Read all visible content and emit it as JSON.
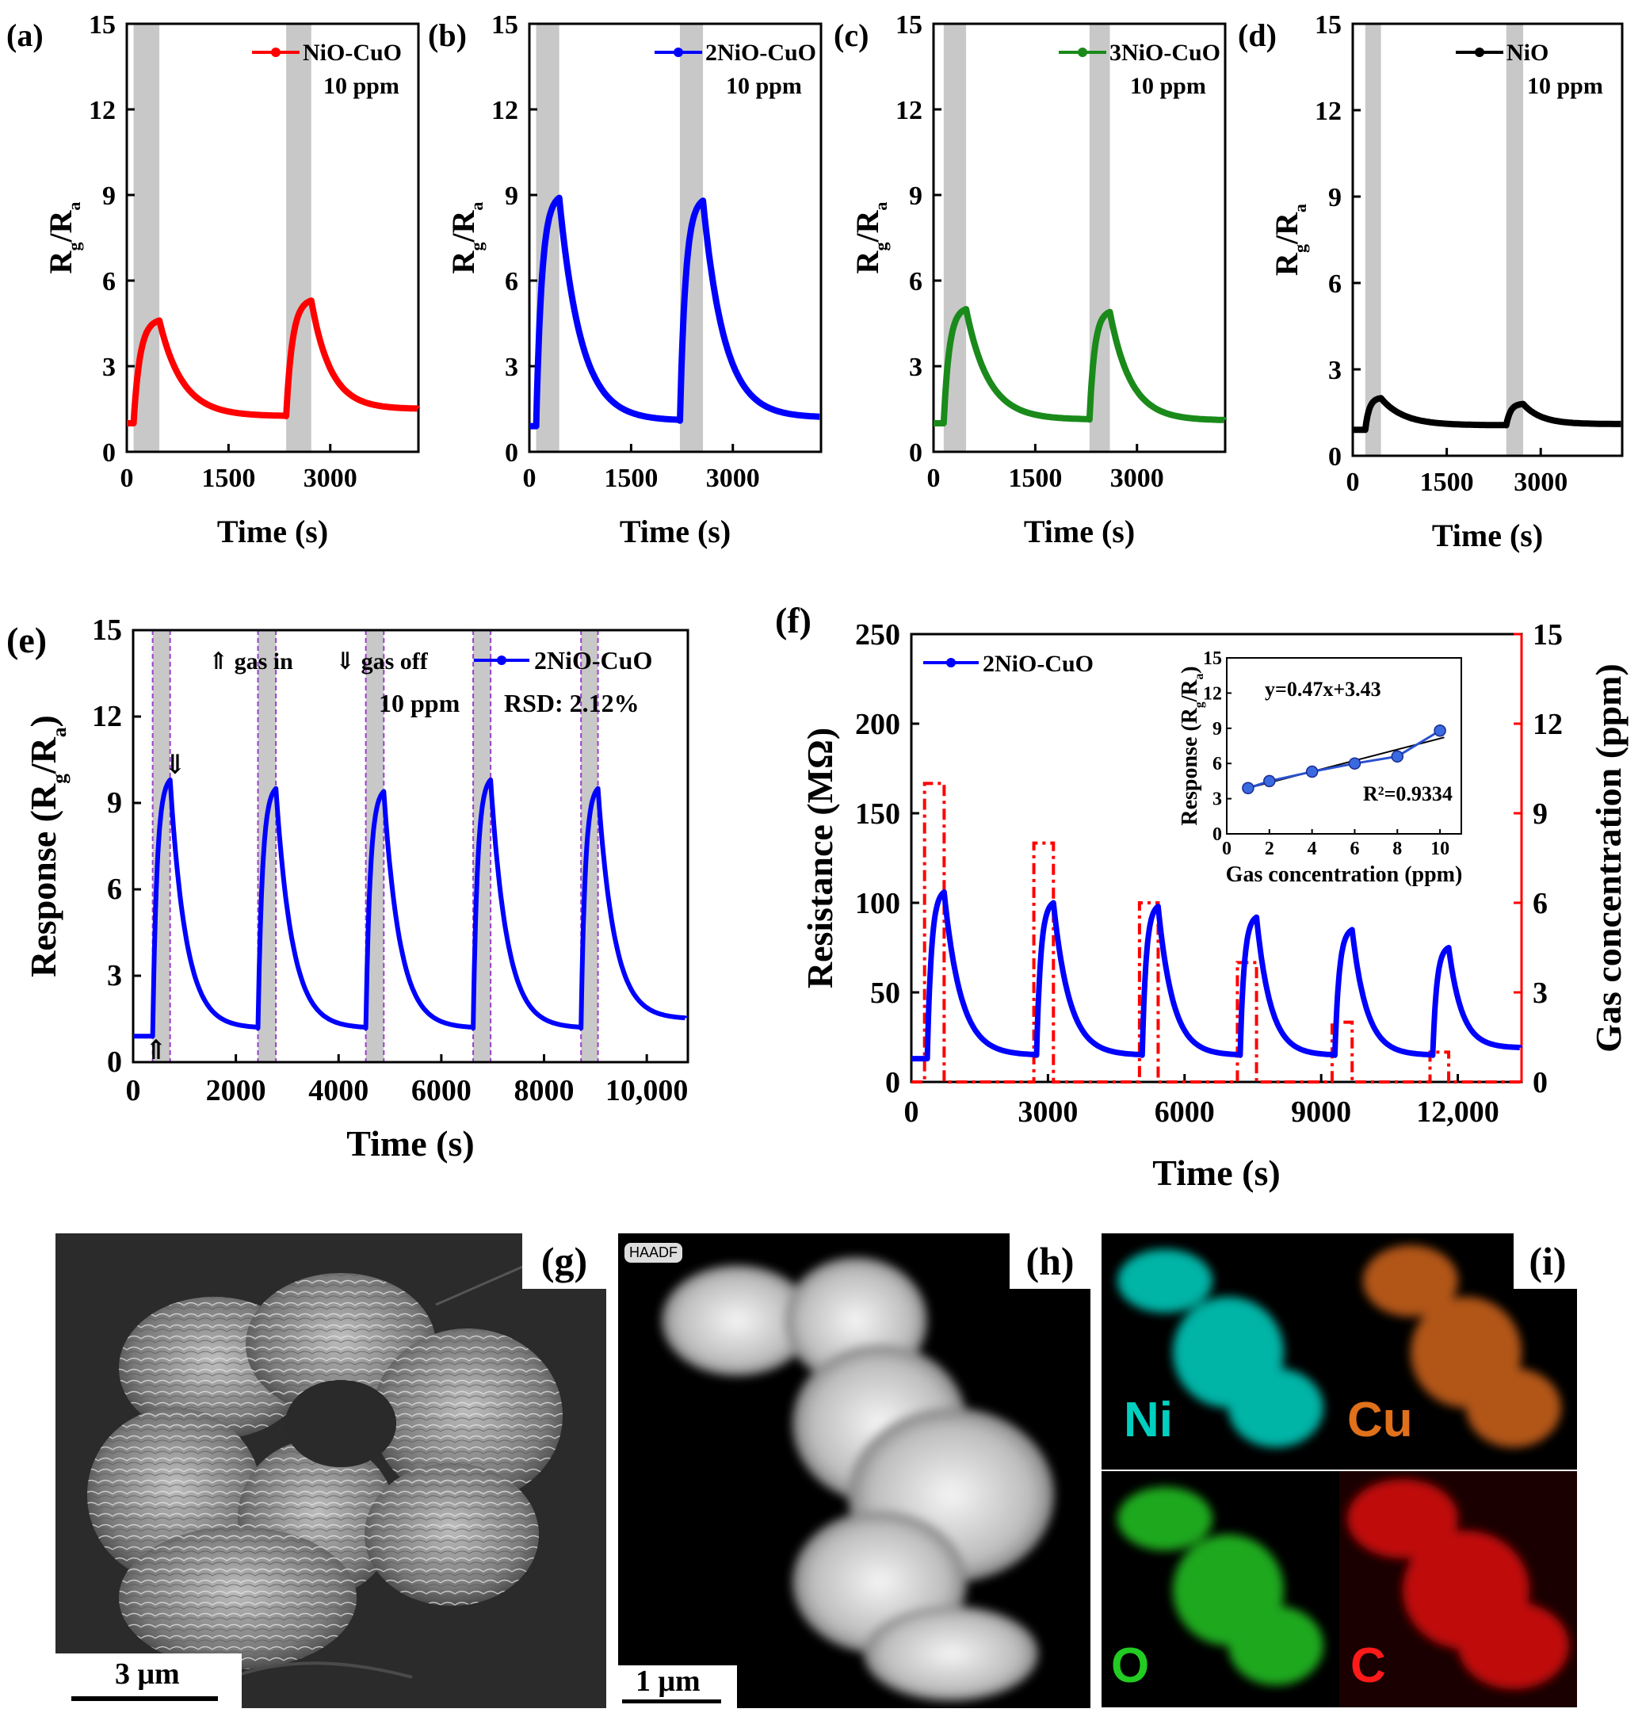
{
  "chart_data": [
    {
      "panel": "(a)",
      "type": "line",
      "legend": "NiO-CuO",
      "note": "10 ppm",
      "color": "#ff0000",
      "xlabel": "Time (s)",
      "ylabel": "R_g/R_a",
      "xlim": [
        0,
        4300
      ],
      "ylim": [
        0,
        15
      ],
      "xticks": [
        0,
        1500,
        3000
      ],
      "yticks": [
        0,
        3,
        6,
        9,
        12,
        15
      ],
      "gas_on_windows": [
        [
          100,
          480
        ],
        [
          2350,
          2720
        ]
      ],
      "pulses": [
        {
          "start": 100,
          "end": 480,
          "peak": 4.6
        },
        {
          "start": 2350,
          "end": 2720,
          "peak": 5.3
        }
      ],
      "baseline": 1.0,
      "final": 1.5
    },
    {
      "panel": "(b)",
      "type": "line",
      "legend": "2NiO-CuO",
      "note": "10 ppm",
      "color": "#0000ff",
      "xlabel": "Time (s)",
      "ylabel": "R_g/R_a",
      "xlim": [
        0,
        4300
      ],
      "ylim": [
        0,
        15
      ],
      "xticks": [
        0,
        1500,
        3000
      ],
      "yticks": [
        0,
        3,
        6,
        9,
        12,
        15
      ],
      "gas_on_windows": [
        [
          100,
          440
        ],
        [
          2220,
          2560
        ]
      ],
      "pulses": [
        {
          "start": 100,
          "end": 440,
          "peak": 8.9
        },
        {
          "start": 2220,
          "end": 2560,
          "peak": 8.8
        }
      ],
      "baseline": 0.9,
      "final": 1.2
    },
    {
      "panel": "(c)",
      "type": "line",
      "legend": "3NiO-CuO",
      "note": "10 ppm",
      "color": "#1a8a1a",
      "xlabel": "Time (s)",
      "ylabel": "R_g/R_a",
      "xlim": [
        0,
        4300
      ],
      "ylim": [
        0,
        15
      ],
      "xticks": [
        0,
        1500,
        3000
      ],
      "yticks": [
        0,
        3,
        6,
        9,
        12,
        15
      ],
      "gas_on_windows": [
        [
          150,
          480
        ],
        [
          2300,
          2600
        ]
      ],
      "pulses": [
        {
          "start": 150,
          "end": 480,
          "peak": 5.0
        },
        {
          "start": 2300,
          "end": 2600,
          "peak": 4.9
        }
      ],
      "baseline": 1.0,
      "final": 1.1
    },
    {
      "panel": "(d)",
      "type": "line",
      "legend": "NiO",
      "note": "10 ppm",
      "color": "#000000",
      "xlabel": "Time (s)",
      "ylabel": "R_g/R_a",
      "xlim": [
        0,
        4300
      ],
      "ylim": [
        0,
        15
      ],
      "xticks": [
        0,
        1500,
        3000
      ],
      "yticks": [
        0,
        3,
        6,
        9,
        12,
        15
      ],
      "gas_on_windows": [
        [
          200,
          450
        ],
        [
          2450,
          2720
        ]
      ],
      "pulses": [
        {
          "start": 200,
          "end": 450,
          "peak": 2.0
        },
        {
          "start": 2450,
          "end": 2720,
          "peak": 1.8
        }
      ],
      "baseline": 0.9,
      "final": 1.1
    },
    {
      "panel": "(e)",
      "type": "line",
      "legend": "2NiO-CuO",
      "note": "10 ppm",
      "rsd": "RSD:  2.12%",
      "gas_in_label": "gas in",
      "gas_off_label": "gas off",
      "color": "#0000ff",
      "xlabel": "Time (s)",
      "ylabel": "Response (R_g/R_a)",
      "xlim": [
        0,
        10800
      ],
      "ylim": [
        0,
        15
      ],
      "xticks": [
        "0",
        "2000",
        "4000",
        "6000",
        "8000",
        "10,000"
      ],
      "xtick_values": [
        0,
        2000,
        4000,
        6000,
        8000,
        10000
      ],
      "yticks": [
        0,
        3,
        6,
        9,
        12,
        15
      ],
      "gas_on_windows": [
        [
          380,
          720
        ],
        [
          2430,
          2780
        ],
        [
          4530,
          4880
        ],
        [
          6620,
          6960
        ],
        [
          8720,
          9050
        ]
      ],
      "pulses": [
        {
          "start": 380,
          "end": 720,
          "peak": 9.8
        },
        {
          "start": 2430,
          "end": 2780,
          "peak": 9.5
        },
        {
          "start": 4530,
          "end": 4880,
          "peak": 9.4
        },
        {
          "start": 6620,
          "end": 6960,
          "peak": 9.8
        },
        {
          "start": 8720,
          "end": 9050,
          "peak": 9.5
        }
      ],
      "baseline": 0.9,
      "final": 1.5
    },
    {
      "panel": "(f)",
      "type": "line",
      "legend": "2NiO-CuO",
      "color": "#0000ff",
      "conc_color": "#ff0000",
      "xlabel": "Time (s)",
      "ylabel": "Resistance (MΩ)",
      "ylabel_right": "Gas concentration (ppm)",
      "xlim": [
        0,
        13400
      ],
      "ylim": [
        0,
        250
      ],
      "ylim_right": [
        0,
        15
      ],
      "xticks": [
        "0",
        "3000",
        "6000",
        "9000",
        "12,000"
      ],
      "xtick_values": [
        0,
        3000,
        6000,
        9000,
        12000
      ],
      "yticks": [
        0,
        50,
        100,
        150,
        200,
        250
      ],
      "yticks_right": [
        0,
        3,
        6,
        9,
        12,
        15
      ],
      "pulses": [
        {
          "start": 350,
          "end": 720,
          "peak": 106,
          "conc": 10
        },
        {
          "start": 2750,
          "end": 3120,
          "peak": 100,
          "conc": 8
        },
        {
          "start": 5070,
          "end": 5420,
          "peak": 98,
          "conc": 6
        },
        {
          "start": 7220,
          "end": 7580,
          "peak": 92,
          "conc": 4
        },
        {
          "start": 9300,
          "end": 9680,
          "peak": 85,
          "conc": 2
        },
        {
          "start": 11450,
          "end": 11800,
          "peak": 75,
          "conc": 1
        }
      ],
      "baseline": 13,
      "final": 19,
      "inset": {
        "xlabel": "Gas concentration (ppm)",
        "ylabel": "Response (R_g/R_a)",
        "xlim": [
          0,
          11
        ],
        "ylim": [
          0,
          15
        ],
        "xticks": [
          0,
          2,
          4,
          6,
          8,
          10
        ],
        "yticks": [
          0,
          3,
          6,
          9,
          12,
          15
        ],
        "x": [
          1,
          2,
          4,
          6,
          8,
          10
        ],
        "y": [
          3.9,
          4.5,
          5.3,
          6.0,
          6.6,
          8.8
        ],
        "fit_equation": "y=0.47x+3.43",
        "r2": "R²=0.9334",
        "fit": {
          "slope": 0.47,
          "intercept": 3.43
        }
      }
    }
  ],
  "images": {
    "g": {
      "label": "(g)",
      "scale": "3 μm"
    },
    "h": {
      "label": "(h)",
      "scale": "1 μm",
      "tag": "HAADF"
    },
    "i": {
      "label": "(i)",
      "elements": [
        {
          "name": "Ni",
          "color": "#00d0c0"
        },
        {
          "name": "Cu",
          "color": "#e0701a"
        },
        {
          "name": "O",
          "color": "#22cc22"
        },
        {
          "name": "C",
          "color": "#ff1a1a"
        }
      ]
    }
  }
}
